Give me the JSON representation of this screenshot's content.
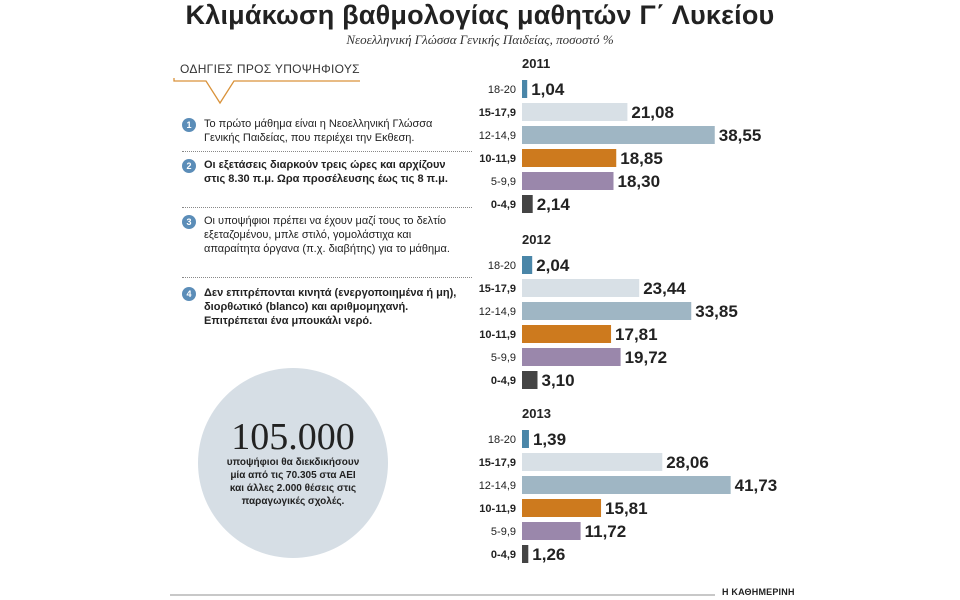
{
  "title": "Κλιμάκωση βαθμολογίας μαθητών Γ΄ Λυκείου",
  "subtitle": "Νεοελληνική Γλώσσα Γενικής Παιδείας, ποσοστό %",
  "instructions": {
    "heading": "ΟΔΗΓΙΕΣ ΠΡΟΣ ΥΠΟΨΗΦΙΟΥΣ",
    "steps": [
      {
        "num": "1",
        "text": "Το πρώτο μάθημα είναι η Νεοελληνική Γλώσσα Γενικής Παιδείας, που περιέχει την Εκθεση."
      },
      {
        "num": "2",
        "text": "Οι εξετάσεις διαρκούν τρεις ώρες και αρχίζουν στις 8.30 π.μ. Ωρα προσέλευσης έως τις  8 π.μ."
      },
      {
        "num": "3",
        "text": "Οι υποψήφιοι πρέπει να έχουν μαζί τους το δελτίο εξεταζομένου, μπλε στιλό, γομολάστιχα και απαραίτητα όργανα (π.χ. διαβήτης) για το μάθημα."
      },
      {
        "num": "4",
        "text": "Δεν επιτρέπονται κινητά (ενεργοποιημένα ή μη), διορθωτικό (blanco) και αριθμομηχανή. Επιτρέπεται ένα μπουκάλι νερό."
      }
    ]
  },
  "callout": {
    "number": "105.000",
    "text": "υποψήφιοι θα διεκδικήσουν μία από τις 70.305 στα ΑΕΙ και άλλες 2.000 θέσεις στις παραγωγικές σχολές."
  },
  "source": "Η ΚΑΘΗΜΕΡΙΝΗ",
  "chart_data": [
    {
      "type": "bar",
      "title": "2011",
      "categories": [
        "18-20",
        "15-17,9",
        "12-14,9",
        "10-11,9",
        "5-9,9",
        "0-4,9"
      ],
      "values": [
        1.04,
        21.08,
        38.55,
        18.85,
        18.3,
        2.14
      ],
      "value_labels": [
        "1,04",
        "21,08",
        "38,55",
        "18,85",
        "18,30",
        "2,14"
      ],
      "bold_categories": [
        false,
        true,
        false,
        true,
        false,
        true
      ],
      "orientation": "horizontal",
      "xlim": [
        0,
        42
      ]
    },
    {
      "type": "bar",
      "title": "2012",
      "categories": [
        "18-20",
        "15-17,9",
        "12-14,9",
        "10-11,9",
        "5-9,9",
        "0-4,9"
      ],
      "values": [
        2.04,
        23.44,
        33.85,
        17.81,
        19.72,
        3.1
      ],
      "value_labels": [
        "2,04",
        "23,44",
        "33,85",
        "17,81",
        "19,72",
        "3,10"
      ],
      "bold_categories": [
        false,
        true,
        false,
        true,
        false,
        true
      ],
      "orientation": "horizontal",
      "xlim": [
        0,
        42
      ]
    },
    {
      "type": "bar",
      "title": "2013",
      "categories": [
        "18-20",
        "15-17,9",
        "12-14,9",
        "10-11,9",
        "5-9,9",
        "0-4,9"
      ],
      "values": [
        1.39,
        28.06,
        41.73,
        15.81,
        11.72,
        1.26
      ],
      "value_labels": [
        "1,39",
        "28,06",
        "41,73",
        "15,81",
        "11,72",
        "1,26"
      ],
      "bold_categories": [
        false,
        true,
        false,
        true,
        false,
        true
      ],
      "orientation": "horizontal",
      "xlim": [
        0,
        42
      ]
    }
  ],
  "colors": {
    "category_colors": [
      "#4a86a8",
      "#d8e0e6",
      "#9fb6c4",
      "#cd7a1e",
      "#9a87ab",
      "#444444"
    ],
    "step_badge": "#5b8db8",
    "circle_bg": "#d6dee5",
    "arrow": "#d9923a"
  }
}
